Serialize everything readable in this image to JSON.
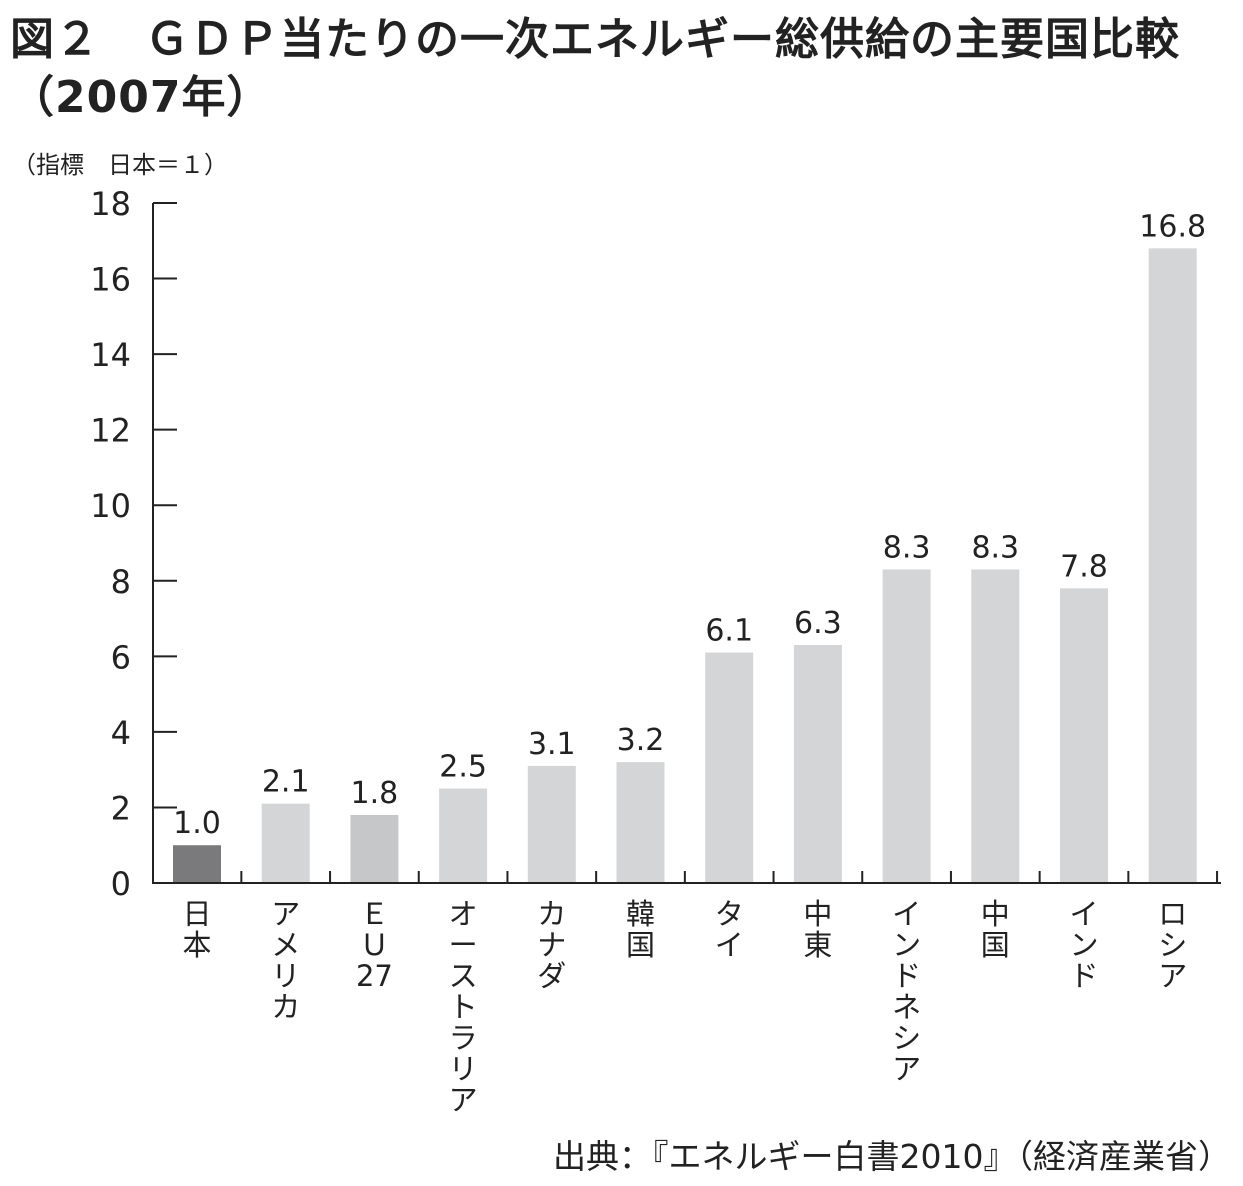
{
  "title_line1": "図２　ＧＤＰ当たりの一次エネルギー総供給の主要国比較",
  "title_line2": "（2007年）",
  "unit_label": "（指標　日本＝１）",
  "source": "出典：『エネルギー白書2010』（経済産業省）",
  "colors": {
    "japan": "#7a7a7c",
    "other": "#d4d5d6",
    "eu": "#c6c7c8",
    "axis": "#222222"
  },
  "chart_data": {
    "type": "bar",
    "categories": [
      "日本",
      "アメリカ",
      "ＥＵ27",
      "オーストラリア",
      "カナダ",
      "韓国",
      "タイ",
      "中東",
      "インドネシア",
      "中国",
      "インド",
      "ロシア"
    ],
    "category_label_lines": [
      [
        "日",
        "本"
      ],
      [
        "ア",
        "メ",
        "リ",
        "カ"
      ],
      [
        "Ｅ",
        "Ｕ",
        "27"
      ],
      [
        "オ",
        "ー",
        "ス",
        "ト",
        "ラ",
        "リ",
        "ア"
      ],
      [
        "カ",
        "ナ",
        "ダ"
      ],
      [
        "韓",
        "国"
      ],
      [
        "タ",
        "イ"
      ],
      [
        "中",
        "東"
      ],
      [
        "イ",
        "ン",
        "ド",
        "ネ",
        "シ",
        "ア"
      ],
      [
        "中",
        "国"
      ],
      [
        "イ",
        "ン",
        "ド"
      ],
      [
        "ロ",
        "シ",
        "ア"
      ]
    ],
    "values": [
      1.0,
      2.1,
      1.8,
      2.5,
      3.1,
      3.2,
      6.1,
      6.3,
      8.3,
      8.3,
      7.8,
      16.8
    ],
    "value_labels": [
      "1.0",
      "2.1",
      "1.8",
      "2.5",
      "3.1",
      "3.2",
      "6.1",
      "6.3",
      "8.3",
      "8.3",
      "7.8",
      "16.8"
    ],
    "ylim": [
      0,
      18
    ],
    "yticks": [
      0,
      2,
      4,
      6,
      8,
      10,
      12,
      14,
      16,
      18
    ],
    "grid": false
  }
}
